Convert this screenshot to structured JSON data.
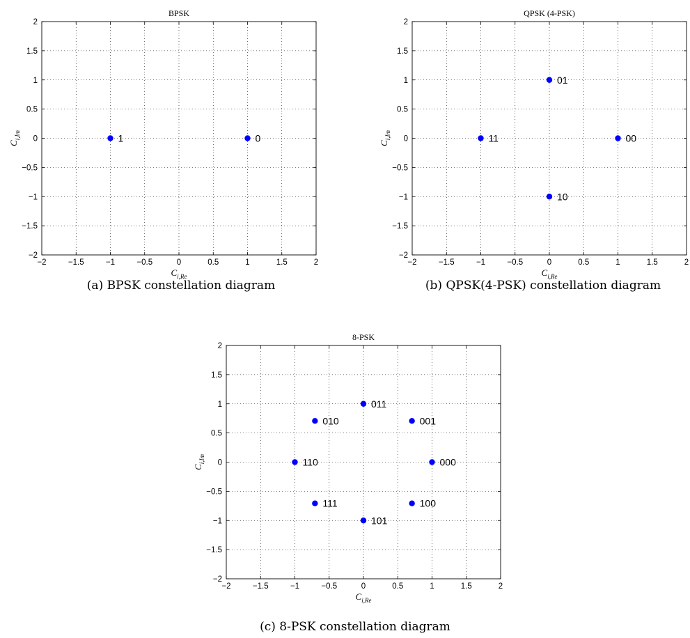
{
  "chart_data": [
    {
      "type": "scatter",
      "title": "BPSK",
      "xlabel": "C_{i,Re}",
      "ylabel": "C_{i,Im}",
      "xlim": [
        -2,
        2
      ],
      "ylim": [
        -2,
        2
      ],
      "xticks": [
        "−2",
        "−1.5",
        "−1",
        "−0.5",
        "0",
        "0.5",
        "1",
        "1.5",
        "2"
      ],
      "yticks": [
        "−2",
        "−1.5",
        "−1",
        "−0.5",
        "0",
        "0.5",
        "1",
        "1.5",
        "2"
      ],
      "grid": true,
      "color": "#0000ff",
      "points": [
        {
          "x": -1,
          "y": 0,
          "label": "1"
        },
        {
          "x": 1,
          "y": 0,
          "label": "0"
        }
      ],
      "caption": "(a)  BPSK constellation diagram"
    },
    {
      "type": "scatter",
      "title": "QPSK (4-PSK)",
      "xlabel": "C_{i,Re}",
      "ylabel": "C_{i,Im}",
      "xlim": [
        -2,
        2
      ],
      "ylim": [
        -2,
        2
      ],
      "xticks": [
        "−2",
        "−1.5",
        "−1",
        "−0.5",
        "0",
        "0.5",
        "1",
        "1.5",
        "2"
      ],
      "yticks": [
        "−2",
        "−1.5",
        "−1",
        "−0.5",
        "0",
        "0.5",
        "1",
        "1.5",
        "2"
      ],
      "grid": true,
      "color": "#0000ff",
      "points": [
        {
          "x": 1,
          "y": 0,
          "label": "00"
        },
        {
          "x": 0,
          "y": 1,
          "label": "01"
        },
        {
          "x": -1,
          "y": 0,
          "label": "11"
        },
        {
          "x": 0,
          "y": -1,
          "label": "10"
        }
      ],
      "caption": "(b)  QPSK(4-PSK) constellation diagram"
    },
    {
      "type": "scatter",
      "title": "8-PSK",
      "xlabel": "C_{i,Re}",
      "ylabel": "C_{i,Im}",
      "xlim": [
        -2,
        2
      ],
      "ylim": [
        -2,
        2
      ],
      "xticks": [
        "−2",
        "−1.5",
        "−1",
        "−0.5",
        "0",
        "0.5",
        "1",
        "1.5",
        "2"
      ],
      "yticks": [
        "−2",
        "−1.5",
        "−1",
        "−0.5",
        "0",
        "0.5",
        "1",
        "1.5",
        "2"
      ],
      "grid": true,
      "color": "#0000ff",
      "points": [
        {
          "x": 1,
          "y": 0,
          "label": "000"
        },
        {
          "x": 0.707,
          "y": 0.707,
          "label": "001"
        },
        {
          "x": 0,
          "y": 1,
          "label": "011"
        },
        {
          "x": -0.707,
          "y": 0.707,
          "label": "010"
        },
        {
          "x": -1,
          "y": 0,
          "label": "110"
        },
        {
          "x": -0.707,
          "y": -0.707,
          "label": "111"
        },
        {
          "x": 0,
          "y": -1,
          "label": "101"
        },
        {
          "x": 0.707,
          "y": -0.707,
          "label": "100"
        }
      ],
      "caption": "(c)  8-PSK constellation diagram"
    }
  ]
}
